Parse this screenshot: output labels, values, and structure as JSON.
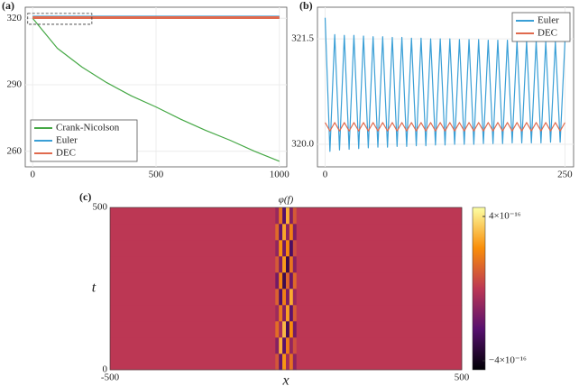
{
  "chart_data": [
    {
      "type": "line",
      "label": "(a)",
      "legend": "lower left",
      "grid": true,
      "xlim": [
        -30,
        1030
      ],
      "ylim": [
        253,
        325
      ],
      "xticks": [
        0,
        500,
        1000
      ],
      "yticks": [
        260,
        290,
        320
      ],
      "x": [
        0,
        100,
        200,
        300,
        400,
        500,
        600,
        700,
        800,
        900,
        1000
      ],
      "zoom_box": {
        "x": [
          -20,
          240
        ],
        "y": [
          317.3,
          322.2
        ]
      },
      "series": [
        {
          "name": "Crank-Nicolson",
          "color": "#45a845",
          "values": [
            320,
            306.5,
            298,
            291,
            285,
            280,
            274.5,
            269.5,
            265,
            260,
            255.5
          ]
        },
        {
          "name": "Euler",
          "color": "#3a9fd6",
          "values": [
            320.6,
            320.6,
            320.6,
            320.6,
            320.6,
            320.6,
            320.6,
            320.6,
            320.6,
            320.6,
            320.6
          ]
        },
        {
          "name": "DEC",
          "color": "#e06a4e",
          "values": [
            320.3,
            320.3,
            320.3,
            320.3,
            320.3,
            320.3,
            320.3,
            320.3,
            320.3,
            320.3,
            320.3
          ]
        }
      ]
    },
    {
      "type": "line",
      "label": "(b)",
      "legend": "upper right",
      "grid": true,
      "xlim": [
        -8,
        259
      ],
      "ylim": [
        319.68,
        321.95
      ],
      "xticks": [
        0,
        250
      ],
      "yticks": [
        {
          "value": 320,
          "label": "320.0"
        },
        {
          "value": 321.5,
          "label": "321.5"
        }
      ],
      "x": [
        0,
        5,
        10,
        15,
        20,
        25,
        30,
        35,
        40,
        45,
        50,
        55,
        60,
        65,
        70,
        75,
        80,
        85,
        90,
        95,
        100,
        105,
        110,
        115,
        120,
        125,
        130,
        135,
        140,
        145,
        150,
        155,
        160,
        165,
        170,
        175,
        180,
        185,
        190,
        195,
        200,
        205,
        210,
        215,
        220,
        225,
        230,
        235,
        240,
        245,
        250
      ],
      "series": [
        {
          "name": "Euler",
          "color": "#3a9fd6",
          "values": [
            321.8,
            319.9,
            321.56,
            319.92,
            321.55,
            319.93,
            321.55,
            319.94,
            321.54,
            319.95,
            321.53,
            319.96,
            321.53,
            319.96,
            321.52,
            319.97,
            321.52,
            319.97,
            321.51,
            319.98,
            321.51,
            319.98,
            321.5,
            319.99,
            321.5,
            319.99,
            321.5,
            320.0,
            321.49,
            320.0,
            321.49,
            320.0,
            321.49,
            320.01,
            321.48,
            320.01,
            321.48,
            320.01,
            321.48,
            320.02,
            321.47,
            320.02,
            321.47,
            320.02,
            321.47,
            320.02,
            321.46,
            320.03,
            321.46,
            320.03,
            321.46
          ]
        },
        {
          "name": "DEC",
          "color": "#e06a4e",
          "values": [
            320.31,
            320.19,
            320.31,
            320.19,
            320.31,
            320.19,
            320.31,
            320.19,
            320.31,
            320.19,
            320.31,
            320.19,
            320.31,
            320.19,
            320.31,
            320.19,
            320.31,
            320.19,
            320.31,
            320.19,
            320.31,
            320.19,
            320.31,
            320.19,
            320.31,
            320.19,
            320.31,
            320.19,
            320.31,
            320.19,
            320.31,
            320.19,
            320.31,
            320.19,
            320.31,
            320.19,
            320.31,
            320.19,
            320.31,
            320.19,
            320.31,
            320.19,
            320.31,
            320.19,
            320.31,
            320.19,
            320.31,
            320.19,
            320.31,
            320.19,
            320.31
          ]
        }
      ]
    },
    {
      "type": "heatmap",
      "label": "(c)",
      "title": "φ(f)",
      "x_label": "x",
      "y_label": "t",
      "colormap": "inferno",
      "xlim": [
        -500,
        500
      ],
      "ylim": [
        0,
        500
      ],
      "xticks": [
        -500,
        500
      ],
      "yticks": [
        0,
        500
      ],
      "zlim": [
        -4.5e-16,
        4.5e-16
      ],
      "zticks": [
        {
          "value": 4e-16,
          "label": "4×10⁻¹⁶"
        },
        {
          "value": -4e-16,
          "label": "−4×10⁻¹⁶"
        }
      ],
      "xbins": [
        -500,
        -30,
        -20,
        -10,
        0,
        10,
        20,
        30,
        500
      ],
      "ybins": [
        0,
        50,
        100,
        150,
        200,
        250,
        300,
        350,
        400,
        450,
        500
      ],
      "z": [
        [
          0,
          8e-17,
          -1.9e-16,
          2.4e-16,
          -6e-17,
          1.5e-16,
          -1.1e-16,
          0
        ],
        [
          0,
          -1.2e-16,
          2.9e-16,
          -2.2e-16,
          1.8e-16,
          -9e-17,
          7e-17,
          0
        ],
        [
          0,
          1.4e-16,
          -5e-17,
          3.1e-16,
          -2.7e-16,
          2.2e-16,
          -1.6e-16,
          0
        ],
        [
          0,
          -7e-17,
          1.7e-16,
          -1.3e-16,
          2.6e-16,
          -2.1e-16,
          1e-16,
          0
        ],
        [
          0,
          1.1e-16,
          -2.4e-16,
          1.9e-16,
          -1.5e-16,
          2.8e-16,
          -8e-17,
          0
        ],
        [
          0,
          -1.6e-16,
          2e-16,
          -2.9e-16,
          1.2e-16,
          -1.8e-16,
          1.3e-16,
          0
        ],
        [
          0,
          9e-17,
          -1.4e-16,
          2.5e-16,
          -3e-16,
          1.6e-16,
          -1.2e-16,
          0
        ],
        [
          0,
          -1e-16,
          2.3e-16,
          -1.7e-16,
          2.1e-16,
          -2.5e-16,
          6e-17,
          0
        ],
        [
          0,
          1.3e-16,
          -2e-16,
          2.7e-16,
          -1.1e-16,
          1.9e-16,
          -1.4e-16,
          0
        ],
        [
          0,
          -8e-17,
          1.6e-16,
          -2.3e-16,
          2.9e-16,
          -1.3e-16,
          9e-17,
          0
        ]
      ]
    }
  ]
}
